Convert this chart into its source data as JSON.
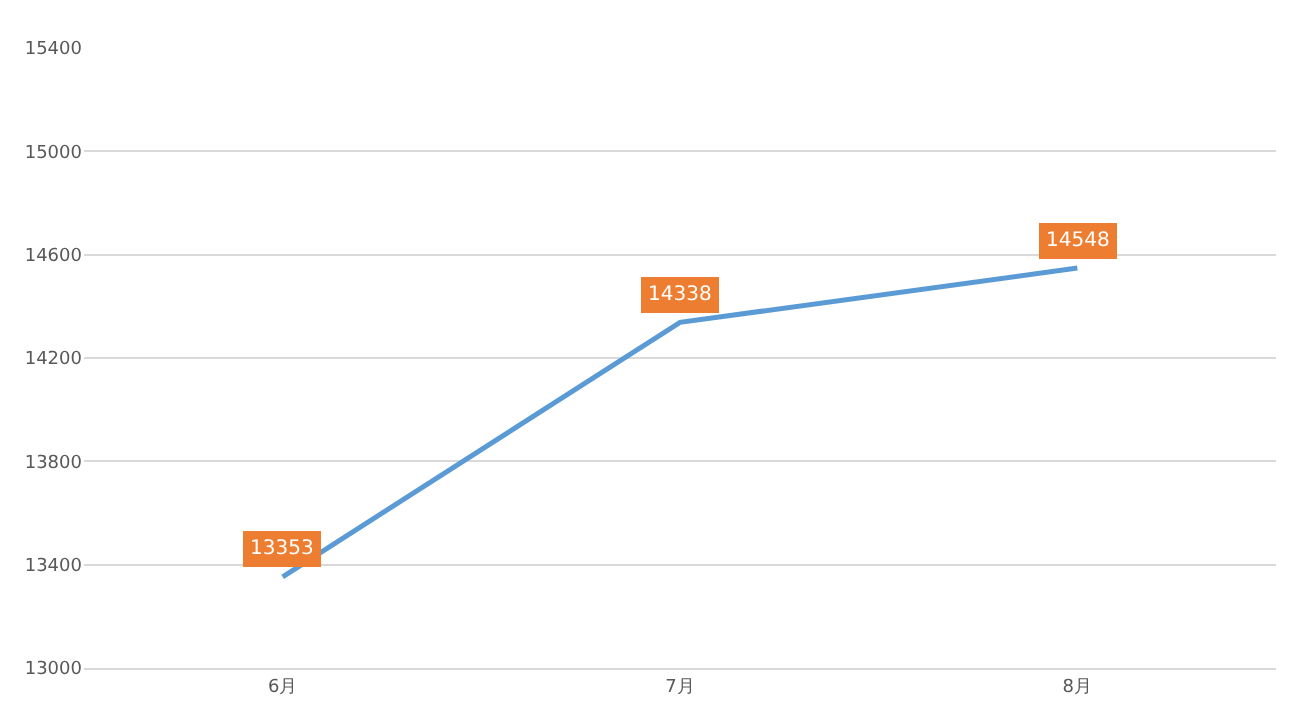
{
  "chart_data": {
    "type": "line",
    "categories": [
      "6月",
      "7月",
      "8月"
    ],
    "series": [
      {
        "color": "#5b9bd5",
        "values": [
          13353,
          14338,
          14548
        ]
      }
    ],
    "ylim": [
      13000,
      15400
    ],
    "yticks": [
      13000,
      13400,
      13800,
      14200,
      14600,
      15000,
      15400
    ],
    "grid": "y",
    "data_labels": true,
    "marker": "none",
    "line_style": "solid",
    "legend": false
  }
}
